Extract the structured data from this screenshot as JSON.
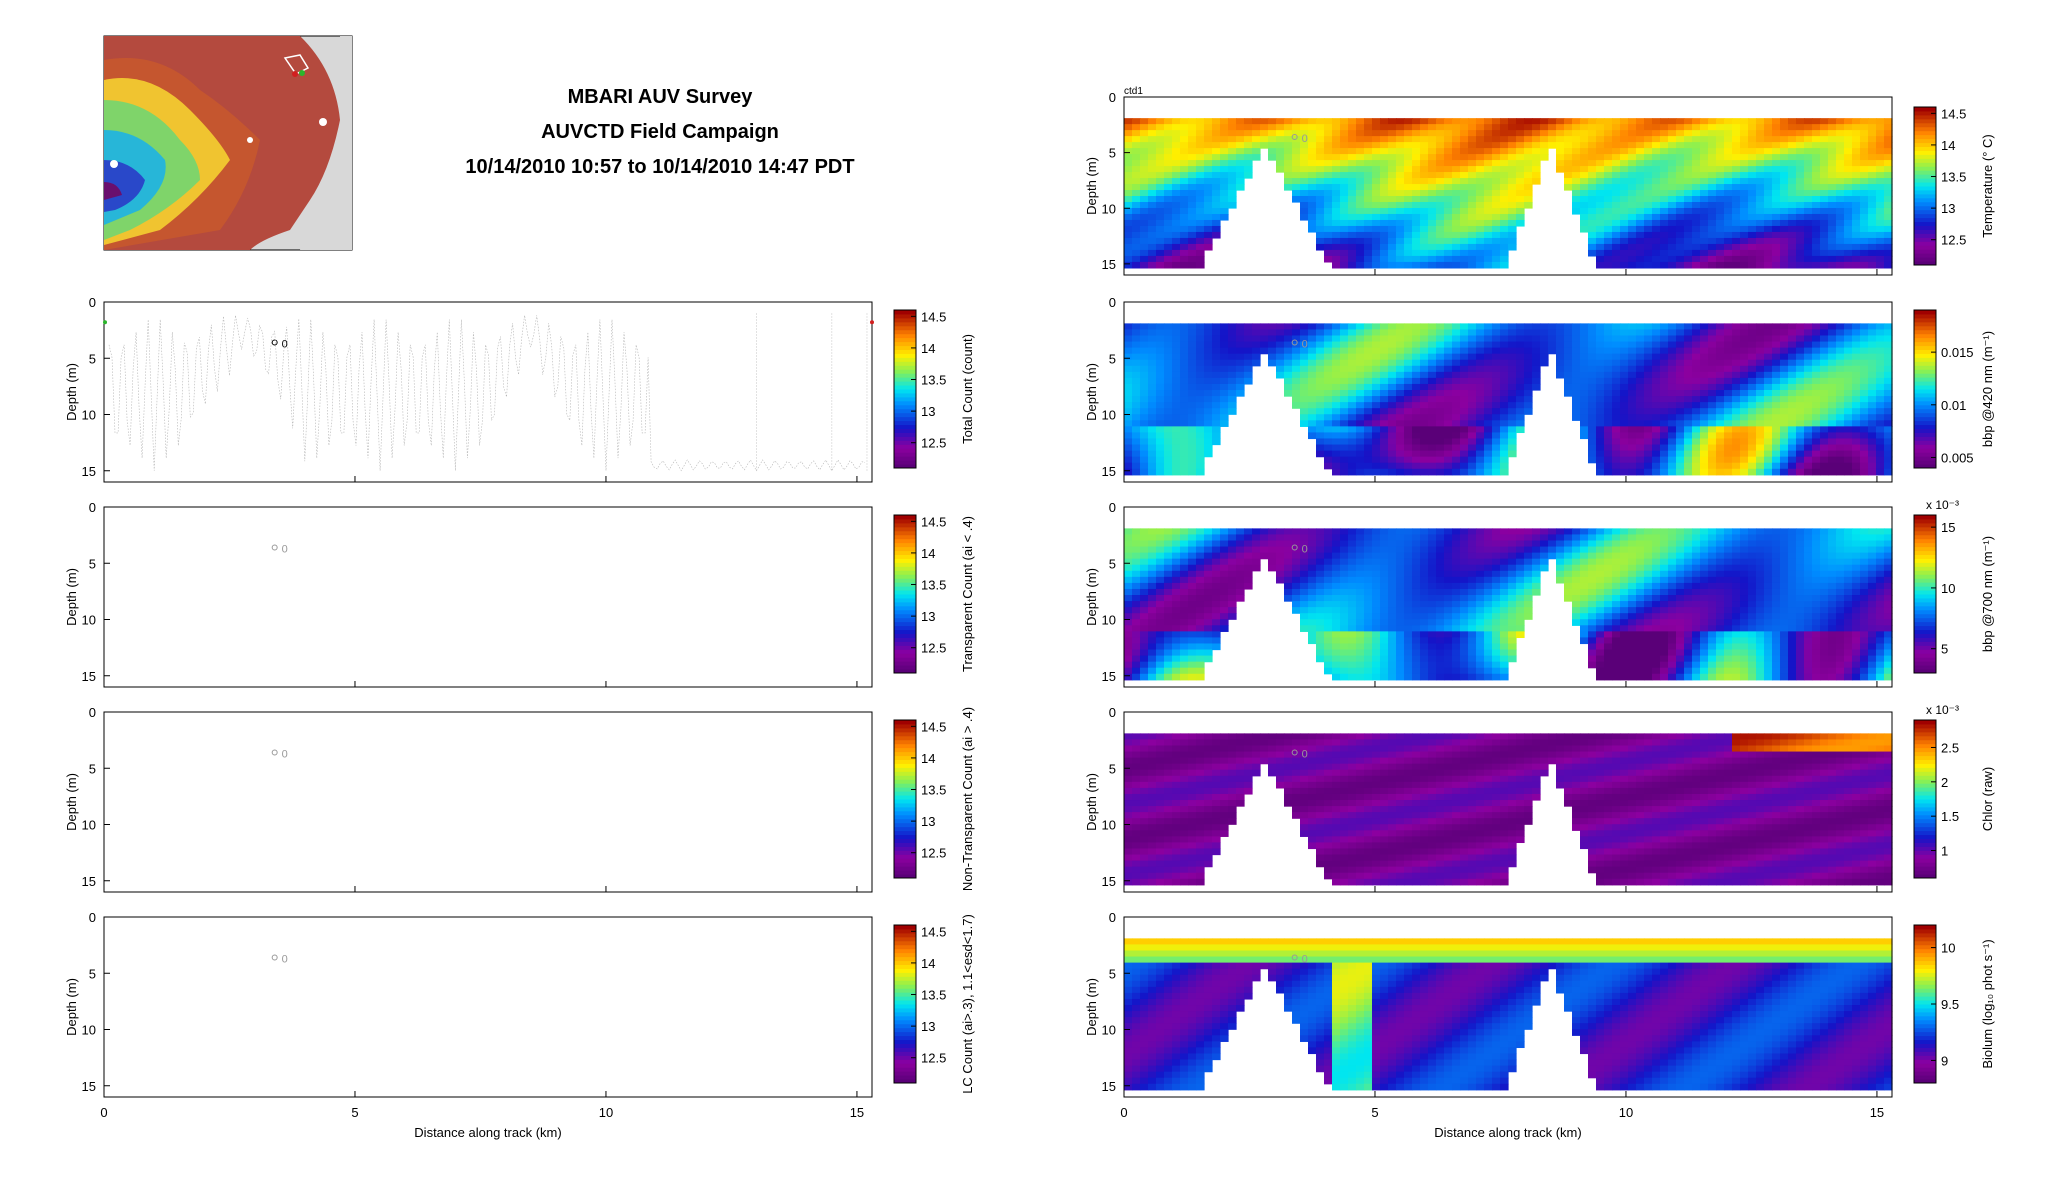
{
  "header": {
    "title": "MBARI AUV Survey",
    "campaign": "AUVCTD Field Campaign",
    "time_range": "10/14/2010 10:57 to 10/14/2010 14:47 PDT"
  },
  "map_inset": {
    "colors": {
      "land": "#d8d8d8",
      "deep": "#6a0f6e",
      "shallow": "#b44a3e"
    }
  },
  "panel_tag": "ctd1",
  "start_marker_label": "0",
  "common": {
    "xlabel": "Distance along track (km)",
    "ylabel": "Depth (m)",
    "xticks": [
      0,
      5,
      10,
      15
    ],
    "yticks": [
      0,
      5,
      10,
      15
    ],
    "xlim": [
      0,
      15.3
    ],
    "ylim": [
      0,
      16
    ]
  },
  "chart_data": [
    {
      "type": "scatter",
      "id": "total-count",
      "colorbar_label": "Total Count (count)",
      "colorbar_ticks": [
        "12.5",
        "13",
        "13.5",
        "14",
        "14.5"
      ],
      "clim": [
        12.1,
        14.6
      ],
      "note_points": "dense sampling dots along the AUV yo-track",
      "data_empty": false
    },
    {
      "type": "scatter",
      "id": "transparent-count",
      "colorbar_label": "Transparent Count (ai < .4)",
      "colorbar_ticks": [
        "12.5",
        "13",
        "13.5",
        "14",
        "14.5"
      ],
      "clim": [
        12.1,
        14.6
      ],
      "data_empty": true
    },
    {
      "type": "scatter",
      "id": "nontransparent-count",
      "colorbar_label": "Non-Transparent Count (ai > .4)",
      "colorbar_ticks": [
        "12.5",
        "13",
        "13.5",
        "14",
        "14.5"
      ],
      "clim": [
        12.1,
        14.6
      ],
      "data_empty": true
    },
    {
      "type": "scatter",
      "id": "lc-count",
      "colorbar_label": "LC Count (ai>.3), 1.1<esd<1.7)",
      "colorbar_ticks": [
        "12.5",
        "13",
        "13.5",
        "14",
        "14.5"
      ],
      "clim": [
        12.1,
        14.6
      ],
      "data_empty": true
    },
    {
      "type": "heatmap",
      "id": "temperature",
      "colorbar_label": "Temperature (° C)",
      "colorbar_ticks": [
        "12.5",
        "13",
        "13.5",
        "14",
        "14.5"
      ],
      "clim": [
        12.1,
        14.6
      ],
      "profile": [
        [
          0,
          14.3
        ],
        [
          1,
          14.3
        ],
        [
          2,
          14.4
        ],
        [
          3,
          14.5
        ],
        [
          4,
          13.6
        ],
        [
          5,
          13.3
        ],
        [
          6,
          13.4
        ],
        [
          7,
          13.4
        ],
        [
          8,
          13.3
        ],
        [
          9,
          13.2
        ],
        [
          10,
          13.3
        ],
        [
          11,
          13.5
        ],
        [
          12,
          13.8
        ],
        [
          13,
          14.0
        ],
        [
          14,
          14.4
        ],
        [
          15.3,
          14.5
        ]
      ]
    },
    {
      "type": "heatmap",
      "id": "bbp-420",
      "colorbar_label": "bbp @420 nm (m⁻¹)",
      "colorbar_ticks": [
        "0.005",
        "0.01",
        "0.015"
      ],
      "clim": [
        0.004,
        0.019
      ]
    },
    {
      "type": "heatmap",
      "id": "bbp-700",
      "colorbar_label": "bbp @700 nm (m⁻¹)",
      "colorbar_exponent": "x 10⁻³",
      "colorbar_ticks": [
        "5",
        "10",
        "15"
      ],
      "clim": [
        3,
        16
      ]
    },
    {
      "type": "heatmap",
      "id": "chlor",
      "colorbar_label": "Chlor (raw)",
      "colorbar_exponent": "x 10⁻³",
      "colorbar_ticks": [
        "1",
        "1.5",
        "2",
        "2.5"
      ],
      "clim": [
        0.6,
        2.9
      ]
    },
    {
      "type": "heatmap",
      "id": "biolum",
      "colorbar_label": "Biolum (log₁₀ phot s⁻¹)",
      "colorbar_ticks": [
        "9",
        "9.5",
        "10"
      ],
      "clim": [
        8.8,
        10.2
      ]
    }
  ]
}
